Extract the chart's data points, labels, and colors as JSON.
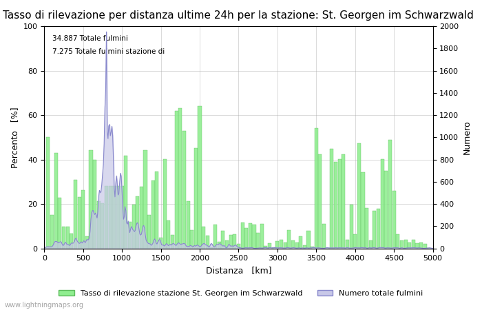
{
  "title": "Tasso di rilevazione per distanza ultime 24h per la stazione: St. Georgen im Schwarzwald",
  "xlabel": "Distanza   [km]",
  "ylabel_left": "Percento   [%]",
  "ylabel_right": "Numero",
  "annotation_line1": "34.887 Totale fulmini",
  "annotation_line2": "7.275 Totale fulmini stazione di",
  "xlim": [
    0,
    5000
  ],
  "ylim_left": [
    0,
    100
  ],
  "ylim_right": [
    0,
    2000
  ],
  "xticks": [
    0,
    500,
    1000,
    1500,
    2000,
    2500,
    3000,
    3500,
    4000,
    4500,
    5000
  ],
  "yticks_left": [
    0,
    20,
    40,
    60,
    80,
    100
  ],
  "yticks_right": [
    0,
    200,
    400,
    600,
    800,
    1000,
    1200,
    1400,
    1600,
    1800,
    2000
  ],
  "legend_label_green": "Tasso di rilevazione stazione St. Georgen im Schwarzwald",
  "legend_label_blue": "Numero totale fulmini",
  "bar_color": "#90EE90",
  "bar_edge_color": "#5DBB5D",
  "fill_color": "#c8c8e8",
  "line_color": "#8888cc",
  "background_color": "#ffffff",
  "grid_color": "#aaaaaa",
  "watermark": "www.lightningmaps.org",
  "title_fontsize": 11,
  "axis_fontsize": 9,
  "tick_fontsize": 8,
  "legend_fontsize": 8,
  "watermark_fontsize": 7
}
